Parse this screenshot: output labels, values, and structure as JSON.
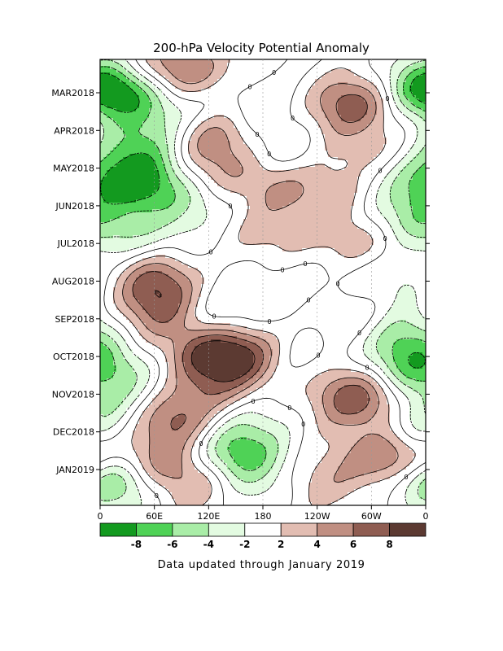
{
  "chart_data": {
    "type": "heatmap",
    "title": "200-hPa Velocity Potential Anomaly",
    "footer": "Data updated through January 2019",
    "x_ticks": [
      "0",
      "60E",
      "120E",
      "180",
      "120W",
      "60W",
      "0"
    ],
    "y_ticks": [
      "MAR2018",
      "APR2018",
      "MAY2018",
      "JUN2018",
      "JUL2018",
      "AUG2018",
      "SEP2018",
      "OCT2018",
      "NOV2018",
      "DEC2018",
      "JAN2019"
    ],
    "xlim": [
      0,
      360
    ],
    "colorbar": {
      "labels": [
        "-8",
        "-6",
        "-4",
        "-2",
        "2",
        "4",
        "6",
        "8"
      ],
      "colors": [
        "#139a1f",
        "#4fd256",
        "#a9eda7",
        "#e3fbe1",
        "#ffffff",
        "#e2bdb2",
        "#c08f82",
        "#8f5d52",
        "#5c3a32"
      ]
    },
    "contour_label": "0",
    "features": [
      {
        "lon": 20,
        "month": 0.0,
        "v": -8
      },
      {
        "lon": 90,
        "month": -0.6,
        "v": 7
      },
      {
        "lon": 80,
        "month": 0.6,
        "v": -3
      },
      {
        "lon": 160,
        "month": 0.3,
        "v": -2
      },
      {
        "lon": 280,
        "month": 0.3,
        "v": 7
      },
      {
        "lon": 355,
        "month": -0.2,
        "v": -4
      },
      {
        "lon": 120,
        "month": 1.1,
        "v": 5
      },
      {
        "lon": 40,
        "month": 1.4,
        "v": -5
      },
      {
        "lon": 300,
        "month": 1.6,
        "v": 3
      },
      {
        "lon": 200,
        "month": 1.5,
        "v": -2
      },
      {
        "lon": 50,
        "month": 2.4,
        "v": -7
      },
      {
        "lon": 355,
        "month": 2.3,
        "v": -5
      },
      {
        "lon": 190,
        "month": 2.5,
        "v": 4
      },
      {
        "lon": 270,
        "month": 2.8,
        "v": 3
      },
      {
        "lon": 130,
        "month": 2.0,
        "v": 3
      },
      {
        "lon": 110,
        "month": 3.0,
        "v": -3
      },
      {
        "lon": 330,
        "month": 3.2,
        "v": -4
      },
      {
        "lon": 10,
        "month": 3.7,
        "v": -3
      },
      {
        "lon": 170,
        "month": 3.7,
        "v": 3
      },
      {
        "lon": 280,
        "month": 3.9,
        "v": 4
      },
      {
        "lon": 80,
        "month": 3.8,
        "v": -2
      },
      {
        "lon": 60,
        "month": 5.0,
        "v": 6
      },
      {
        "lon": 70,
        "month": 5.8,
        "v": 5
      },
      {
        "lon": 200,
        "month": 5.2,
        "v": -2
      },
      {
        "lon": 320,
        "month": 5.0,
        "v": -3
      },
      {
        "lon": 130,
        "month": 5.9,
        "v": -3
      },
      {
        "lon": 270,
        "month": 5.9,
        "v": 3
      },
      {
        "lon": 330,
        "month": 6.4,
        "v": -4
      },
      {
        "lon": 120,
        "month": 6.9,
        "v": 7
      },
      {
        "lon": 160,
        "month": 7.0,
        "v": 6
      },
      {
        "lon": 340,
        "month": 7.2,
        "v": -5
      },
      {
        "lon": 30,
        "month": 7.4,
        "v": -3
      },
      {
        "lon": 210,
        "month": 7.0,
        "v": -2
      },
      {
        "lon": 270,
        "month": 7.9,
        "v": 4
      },
      {
        "lon": 120,
        "month": 7.9,
        "v": 4
      },
      {
        "lon": 300,
        "month": 8.3,
        "v": 5
      },
      {
        "lon": 20,
        "month": 8.2,
        "v": -3
      },
      {
        "lon": 80,
        "month": 8.7,
        "v": 7
      },
      {
        "lon": 150,
        "month": 8.7,
        "v": -3
      },
      {
        "lon": 350,
        "month": 8.8,
        "v": -4
      },
      {
        "lon": 320,
        "month": 9.7,
        "v": 8
      },
      {
        "lon": 150,
        "month": 9.6,
        "v": -7
      },
      {
        "lon": 60,
        "month": 9.9,
        "v": 6
      },
      {
        "lon": 20,
        "month": 10.3,
        "v": -6
      },
      {
        "lon": 350,
        "month": 10.2,
        "v": -3
      },
      {
        "lon": 250,
        "month": 10.4,
        "v": 3
      },
      {
        "lon": 110,
        "month": 10.4,
        "v": 3
      },
      {
        "lon": 180,
        "month": 10.5,
        "v": -2
      }
    ]
  }
}
